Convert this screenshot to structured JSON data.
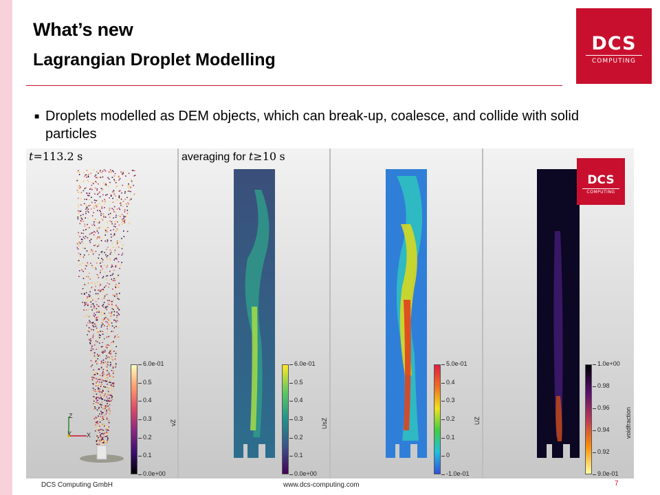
{
  "slide": {
    "title": "What’s new",
    "subtitle": "Lagrangian Droplet Modelling",
    "bullet": "Droplets modelled as DEM objects, which can break-up, coalesce, and collide with solid particles",
    "bullet_marker": "■"
  },
  "logo": {
    "line1": "DCS",
    "line2": "COMPUTING"
  },
  "figure": {
    "label1": {
      "var": "t",
      "eq": "=",
      "value": "113.2",
      "unit": "s"
    },
    "label2": {
      "prefix": "averaging for",
      "var": "t",
      "op": "≥",
      "value": "10",
      "unit": "s"
    },
    "axes": {
      "z": "Z",
      "y": "Y",
      "x": "X"
    },
    "colorbars": [
      {
        "title": "vZ",
        "ticks": [
          "6.0e-01",
          "0.5",
          "0.4",
          "0.3",
          "0.2",
          "0.1",
          "0.0e+00"
        ]
      },
      {
        "title": "UsZ",
        "ticks": [
          "6.0e-01",
          "0.5",
          "0.4",
          "0.3",
          "0.2",
          "0.1",
          "0.0e+00"
        ]
      },
      {
        "title": "UZ",
        "ticks": [
          "5.0e-01",
          "0.4",
          "0.3",
          "0.2",
          "0.1",
          "0",
          "-1.0e-01"
        ]
      },
      {
        "title": "voidfraction",
        "ticks": [
          "1.0e+00",
          "0.98",
          "0.96",
          "0.94",
          "0.92",
          "9.0e-01"
        ]
      }
    ]
  },
  "footer": {
    "company": "DCS Computing GmbH",
    "url": "www.dcs-computing.com",
    "page": "7"
  },
  "colors": {
    "brand": "#c8102e",
    "side_band": "#f7d2da"
  }
}
